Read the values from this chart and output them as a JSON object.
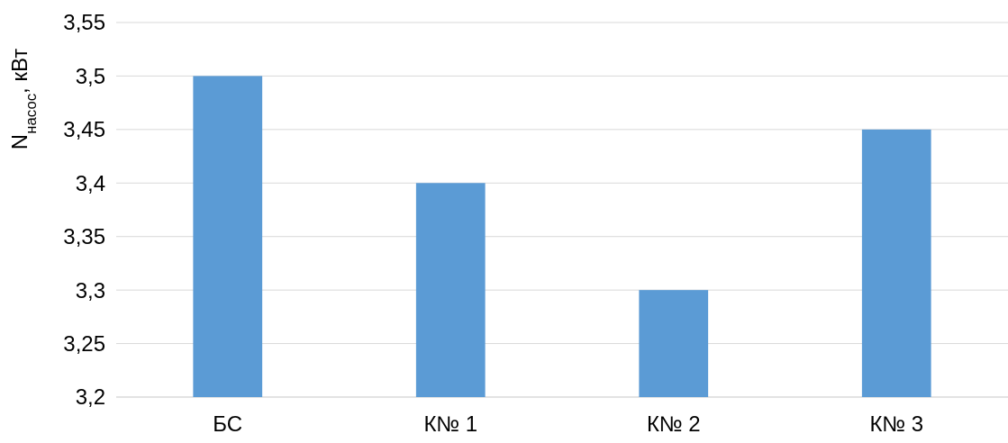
{
  "chart_data": {
    "type": "bar",
    "ylabel": "N$_{насос}$, кВт",
    "categories": [
      "БС",
      "К№ 1",
      "К№ 2",
      "К№ 3"
    ],
    "values": [
      3.5,
      3.4,
      3.3,
      3.45
    ],
    "color": "#5b9bd5",
    "ylim": [
      3.2,
      3.55
    ],
    "yticks": [
      {
        "value": 3.2,
        "label": "3,2"
      },
      {
        "value": 3.25,
        "label": "3,25"
      },
      {
        "value": 3.3,
        "label": "3,3"
      },
      {
        "value": 3.35,
        "label": "3,35"
      },
      {
        "value": 3.4,
        "label": "3,4"
      },
      {
        "value": 3.45,
        "label": "3,45"
      },
      {
        "value": 3.5,
        "label": "3,5"
      },
      {
        "value": 3.55,
        "label": "3,55"
      }
    ],
    "grid": "y"
  }
}
